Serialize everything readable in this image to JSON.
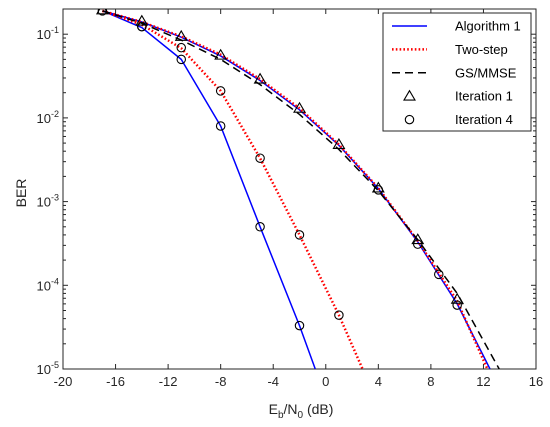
{
  "chart_data": {
    "type": "line",
    "xlabel": "E_b/N_0 (dB)",
    "xlabel_parts": {
      "base": "E",
      "sub1": "b",
      "mid": "/N",
      "sub2": "0",
      "unit": " (dB)"
    },
    "ylabel": "BER",
    "xlim": [
      -20,
      16
    ],
    "ylim": [
      1e-05,
      0.2
    ],
    "yscale": "log",
    "x_ticks": [
      -20,
      -16,
      -12,
      -8,
      -4,
      0,
      4,
      8,
      12,
      16
    ],
    "x_tick_labels": [
      "-20",
      "-16",
      "-12",
      "-8",
      "-4",
      "0",
      "4",
      "8",
      "12",
      "16"
    ],
    "y_ticks": [
      {
        "value": 1e-05,
        "base": "10",
        "exp": "-5"
      },
      {
        "value": 0.0001,
        "base": "10",
        "exp": "-4"
      },
      {
        "value": 0.001,
        "base": "10",
        "exp": "-3"
      },
      {
        "value": 0.01,
        "base": "10",
        "exp": "-2"
      },
      {
        "value": 0.1,
        "base": "10",
        "exp": "-1"
      }
    ],
    "grid": false,
    "legend_position": "top-right",
    "series": [
      {
        "name": "Algorithm 1",
        "style": "solid",
        "color": "#0000ff",
        "x": [
          -17,
          -14,
          -11,
          -8,
          -5,
          -2,
          -0.8
        ],
        "y": [
          0.19,
          0.12,
          0.05,
          0.008,
          0.0005,
          3.3e-05,
          1e-05
        ]
      },
      {
        "name": "Algorithm 1",
        "style": "solid",
        "color": "#0000ff",
        "x": [
          -17,
          -14,
          -11,
          -8,
          -5,
          -2,
          1,
          4,
          7,
          10,
          12.5
        ],
        "y": [
          0.19,
          0.14,
          0.092,
          0.055,
          0.028,
          0.0125,
          0.0047,
          0.00143,
          0.00033,
          6e-05,
          1e-05
        ]
      },
      {
        "name": "Two-step",
        "style": "dotted",
        "color": "#ff0000",
        "x": [
          -17,
          -14,
          -11,
          -8,
          -5,
          -2,
          1,
          2.8
        ],
        "y": [
          0.19,
          0.13,
          0.068,
          0.021,
          0.0033,
          0.0004,
          4.4e-05,
          1e-05
        ]
      },
      {
        "name": "Two-step",
        "style": "dotted",
        "color": "#ff0000",
        "x": [
          -17,
          -14,
          -11,
          -8,
          -5,
          -2,
          1,
          4,
          7,
          10,
          12.3
        ],
        "y": [
          0.19,
          0.14,
          0.094,
          0.057,
          0.029,
          0.013,
          0.0048,
          0.00145,
          0.00034,
          6.5e-05,
          1e-05
        ]
      },
      {
        "name": "GS/MMSE",
        "style": "dashed",
        "color": "#000000",
        "x": [
          -17,
          -14,
          -11,
          -8,
          -5,
          -2,
          1,
          4,
          7,
          10,
          13.2
        ],
        "y": [
          0.19,
          0.135,
          0.085,
          0.05,
          0.025,
          0.011,
          0.0042,
          0.00135,
          0.00035,
          8e-05,
          1e-05
        ]
      },
      {
        "name": "Iteration 1",
        "marker": "triangle",
        "color": "#000000",
        "x": [
          -17,
          -14,
          -11,
          -8,
          -5,
          -2,
          1,
          4,
          7,
          10
        ],
        "y": [
          0.195,
          0.143,
          0.094,
          0.056,
          0.029,
          0.013,
          0.0048,
          0.00145,
          0.00035,
          6.8e-05
        ]
      },
      {
        "name": "Iteration 4",
        "marker": "circle",
        "color": "#000000",
        "x": [
          -17,
          -14,
          -11,
          -8,
          -5,
          -2,
          1
        ],
        "y": [
          0.19,
          0.123,
          0.069,
          0.021,
          0.0033,
          0.0004,
          4.4e-05
        ]
      },
      {
        "name": "Iteration 4",
        "marker": "circle",
        "color": "#000000",
        "x": [
          -14,
          -11,
          -8,
          -5,
          -2,
          4,
          7,
          8.6,
          10
        ],
        "y": [
          0.123,
          0.05,
          0.008,
          0.0005,
          3.3e-05,
          0.00138,
          0.00031,
          0.000135,
          5.8e-05
        ]
      }
    ],
    "legend": [
      {
        "label": "Algorithm 1",
        "style": "solid",
        "color": "#0000ff"
      },
      {
        "label": "Two-step",
        "style": "dotted",
        "color": "#ff0000"
      },
      {
        "label": "GS/MMSE",
        "style": "dashed",
        "color": "#000000"
      },
      {
        "label": "Iteration 1",
        "marker": "triangle",
        "color": "#000000"
      },
      {
        "label": "Iteration 4",
        "marker": "circle",
        "color": "#000000"
      }
    ]
  }
}
